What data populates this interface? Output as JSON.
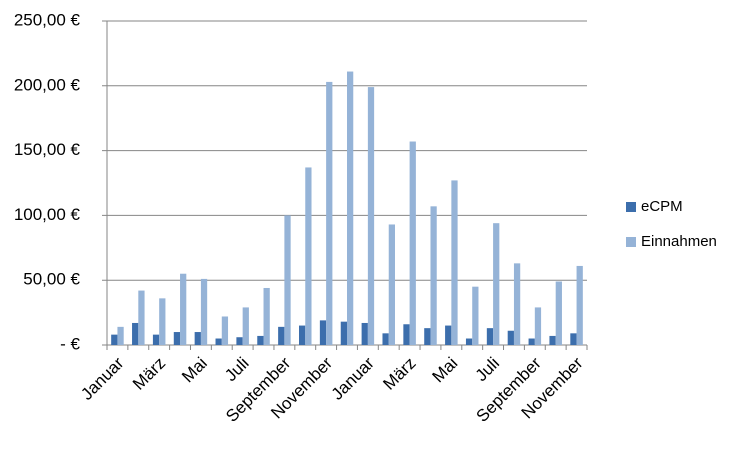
{
  "chart_data": {
    "type": "bar",
    "categories": [
      "Januar",
      null,
      "März",
      null,
      "Mai",
      null,
      "Juli",
      null,
      "September",
      null,
      "November",
      null,
      "Januar",
      null,
      "März",
      null,
      "Mai",
      null,
      "Juli",
      null,
      "September",
      null,
      "November"
    ],
    "series": [
      {
        "name": "eCPM",
        "color": "#3c6eac",
        "values": [
          8,
          17,
          8,
          10,
          10,
          5,
          6,
          7,
          14,
          15,
          19,
          18,
          17,
          9,
          16,
          13,
          15,
          5,
          13,
          11,
          5,
          7,
          9
        ]
      },
      {
        "name": "Einnahmen",
        "color": "#95b3d7",
        "values": [
          14,
          42,
          36,
          55,
          51,
          22,
          29,
          44,
          100,
          137,
          203,
          211,
          199,
          93,
          157,
          107,
          127,
          45,
          94,
          63,
          29,
          49,
          61
        ]
      }
    ],
    "ylim": [
      0,
      250
    ],
    "yticks": [
      {
        "value": 0,
        "label": "-   €"
      },
      {
        "value": 50,
        "label": "50,00 €"
      },
      {
        "value": 100,
        "label": "100,00 €"
      },
      {
        "value": 150,
        "label": "150,00 €"
      },
      {
        "value": 200,
        "label": "200,00 €"
      },
      {
        "value": 250,
        "label": "250,00 €"
      }
    ],
    "grid": true,
    "legend": "right"
  }
}
